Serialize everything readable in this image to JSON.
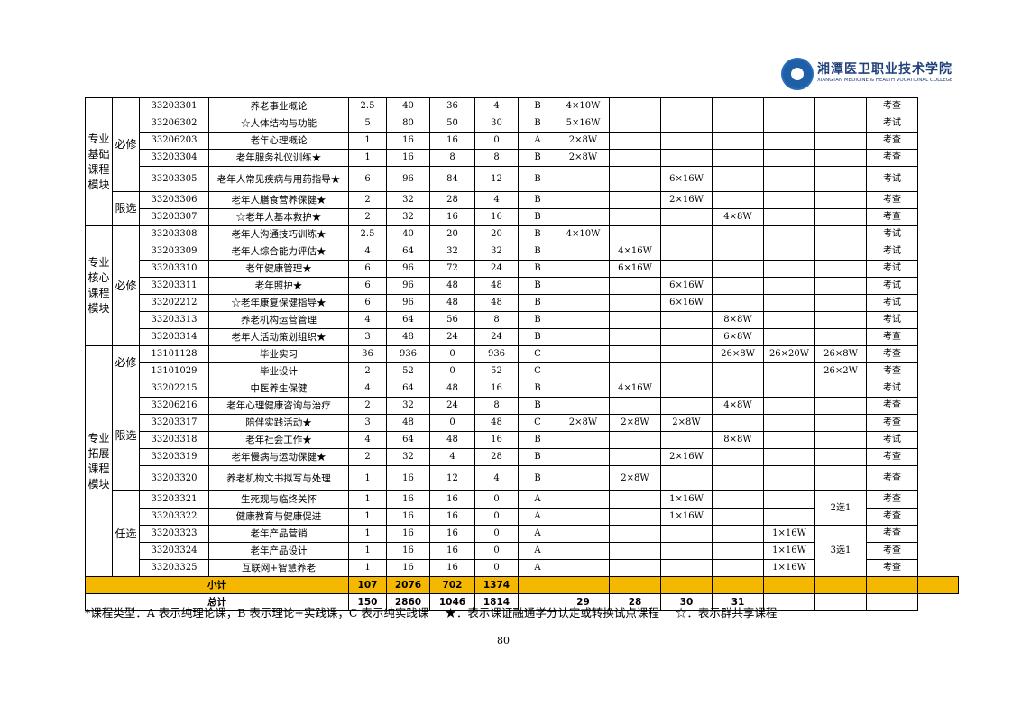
{
  "logo": {
    "cn": "湘潭医卫职业技术学院",
    "en": "XIANGTAN MEDICINE & HEALTH VOCATIONAL COLLEGE"
  },
  "groups": {
    "g1": "专业基础课程模块",
    "g2": "专业核心课程模块",
    "g3": "专业拓展课程模块"
  },
  "types": {
    "bixiu": "必修",
    "xianxuan": "限选",
    "renxuan": "任选"
  },
  "rows": [
    {
      "code": "33203301",
      "name": "养老事业概论",
      "credit": "2.5",
      "total": "40",
      "theory": "36",
      "practice": "4",
      "type": "B",
      "s1": "4×10W",
      "s2": "",
      "s3": "",
      "s4": "",
      "s5": "",
      "s6": "",
      "exam": "考查"
    },
    {
      "code": "33206302",
      "name": "☆人体结构与功能",
      "credit": "5",
      "total": "80",
      "theory": "50",
      "practice": "30",
      "type": "B",
      "s1": "5×16W",
      "s2": "",
      "s3": "",
      "s4": "",
      "s5": "",
      "s6": "",
      "exam": "考试"
    },
    {
      "code": "33206203",
      "name": "老年心理概论",
      "credit": "1",
      "total": "16",
      "theory": "16",
      "practice": "0",
      "type": "A",
      "s1": "2×8W",
      "s2": "",
      "s3": "",
      "s4": "",
      "s5": "",
      "s6": "",
      "exam": "考查"
    },
    {
      "code": "33203304",
      "name": "老年服务礼仪训练★",
      "credit": "1",
      "total": "16",
      "theory": "8",
      "practice": "8",
      "type": "B",
      "s1": "2×8W",
      "s2": "",
      "s3": "",
      "s4": "",
      "s5": "",
      "s6": "",
      "exam": "考查"
    },
    {
      "code": "33203305",
      "name": "老年人常见疾病与用药指导★",
      "credit": "6",
      "total": "96",
      "theory": "84",
      "practice": "12",
      "type": "B",
      "s1": "",
      "s2": "",
      "s3": "6×16W",
      "s4": "",
      "s5": "",
      "s6": "",
      "exam": "考试"
    },
    {
      "code": "33203306",
      "name": "老年人膳食营养保健★",
      "credit": "2",
      "total": "32",
      "theory": "28",
      "practice": "4",
      "type": "B",
      "s1": "",
      "s2": "",
      "s3": "2×16W",
      "s4": "",
      "s5": "",
      "s6": "",
      "exam": "考查"
    },
    {
      "code": "33203307",
      "name": "☆老年人基本救护★",
      "credit": "2",
      "total": "32",
      "theory": "16",
      "practice": "16",
      "type": "B",
      "s1": "",
      "s2": "",
      "s3": "",
      "s4": "4×8W",
      "s5": "",
      "s6": "",
      "exam": "考查"
    },
    {
      "code": "33203308",
      "name": "老年人沟通技巧训练★",
      "credit": "2.5",
      "total": "40",
      "theory": "20",
      "practice": "20",
      "type": "B",
      "s1": "4×10W",
      "s2": "",
      "s3": "",
      "s4": "",
      "s5": "",
      "s6": "",
      "exam": "考试"
    },
    {
      "code": "33203309",
      "name": "老年人综合能力评估★",
      "credit": "4",
      "total": "64",
      "theory": "32",
      "practice": "32",
      "type": "B",
      "s1": "",
      "s2": "4×16W",
      "s3": "",
      "s4": "",
      "s5": "",
      "s6": "",
      "exam": "考试"
    },
    {
      "code": "33203310",
      "name": "老年健康管理★",
      "credit": "6",
      "total": "96",
      "theory": "72",
      "practice": "24",
      "type": "B",
      "s1": "",
      "s2": "6×16W",
      "s3": "",
      "s4": "",
      "s5": "",
      "s6": "",
      "exam": "考试"
    },
    {
      "code": "33203311",
      "name": "老年照护★",
      "credit": "6",
      "total": "96",
      "theory": "48",
      "practice": "48",
      "type": "B",
      "s1": "",
      "s2": "",
      "s3": "6×16W",
      "s4": "",
      "s5": "",
      "s6": "",
      "exam": "考试"
    },
    {
      "code": "33202212",
      "name": "☆老年康复保健指导★",
      "credit": "6",
      "total": "96",
      "theory": "48",
      "practice": "48",
      "type": "B",
      "s1": "",
      "s2": "",
      "s3": "6×16W",
      "s4": "",
      "s5": "",
      "s6": "",
      "exam": "考试"
    },
    {
      "code": "33203313",
      "name": "养老机构运营管理",
      "credit": "4",
      "total": "64",
      "theory": "56",
      "practice": "8",
      "type": "B",
      "s1": "",
      "s2": "",
      "s3": "",
      "s4": "8×8W",
      "s5": "",
      "s6": "",
      "exam": "考试"
    },
    {
      "code": "33203314",
      "name": "老年人活动策划组织★",
      "credit": "3",
      "total": "48",
      "theory": "24",
      "practice": "24",
      "type": "B",
      "s1": "",
      "s2": "",
      "s3": "",
      "s4": "6×8W",
      "s5": "",
      "s6": "",
      "exam": "考查"
    },
    {
      "code": "13101128",
      "name": "毕业实习",
      "credit": "36",
      "total": "936",
      "theory": "0",
      "practice": "936",
      "type": "C",
      "s1": "",
      "s2": "",
      "s3": "",
      "s4": "26×8W",
      "s5": "26×20W",
      "s6": "26×8W",
      "exam": "考查"
    },
    {
      "code": "13101029",
      "name": "毕业设计",
      "credit": "2",
      "total": "52",
      "theory": "0",
      "practice": "52",
      "type": "C",
      "s1": "",
      "s2": "",
      "s3": "",
      "s4": "",
      "s5": "",
      "s6": "26×2W",
      "exam": "考查"
    },
    {
      "code": "33202215",
      "name": "中医养生保健",
      "credit": "4",
      "total": "64",
      "theory": "48",
      "practice": "16",
      "type": "B",
      "s1": "",
      "s2": "4×16W",
      "s3": "",
      "s4": "",
      "s5": "",
      "s6": "",
      "exam": "考试"
    },
    {
      "code": "33206216",
      "name": "老年心理健康咨询与治疗",
      "credit": "2",
      "total": "32",
      "theory": "24",
      "practice": "8",
      "type": "B",
      "s1": "",
      "s2": "",
      "s3": "",
      "s4": "4×8W",
      "s5": "",
      "s6": "",
      "exam": "考查"
    },
    {
      "code": "33203317",
      "name": "陪伴实践活动★",
      "credit": "3",
      "total": "48",
      "theory": "0",
      "practice": "48",
      "type": "C",
      "s1": "2×8W",
      "s2": "2×8W",
      "s3": "2×8W",
      "s4": "",
      "s5": "",
      "s6": "",
      "exam": "考查"
    },
    {
      "code": "33203318",
      "name": "老年社会工作★",
      "credit": "4",
      "total": "64",
      "theory": "48",
      "practice": "16",
      "type": "B",
      "s1": "",
      "s2": "",
      "s3": "",
      "s4": "8×8W",
      "s5": "",
      "s6": "",
      "exam": "考试"
    },
    {
      "code": "33203319",
      "name": "老年慢病与运动保健★",
      "credit": "2",
      "total": "32",
      "theory": "4",
      "practice": "28",
      "type": "B",
      "s1": "",
      "s2": "",
      "s3": "2×16W",
      "s4": "",
      "s5": "",
      "s6": "",
      "exam": "考查"
    },
    {
      "code": "33203320",
      "name": "养老机构文书拟写与处理",
      "credit": "1",
      "total": "16",
      "theory": "12",
      "practice": "4",
      "type": "B",
      "s1": "",
      "s2": "2×8W",
      "s3": "",
      "s4": "",
      "s5": "",
      "s6": "",
      "exam": "考查"
    },
    {
      "code": "33203321",
      "name": "生死观与临终关怀",
      "credit": "1",
      "total": "16",
      "theory": "16",
      "practice": "0",
      "type": "A",
      "s1": "",
      "s2": "",
      "s3": "1×16W",
      "s4": "",
      "s5": "",
      "s6": "",
      "exam": "考查"
    },
    {
      "code": "33203322",
      "name": "健康教育与健康促进",
      "credit": "1",
      "total": "16",
      "theory": "16",
      "practice": "0",
      "type": "A",
      "s1": "",
      "s2": "",
      "s3": "1×16W",
      "s4": "",
      "s5": "",
      "s6": "",
      "exam": "考查"
    },
    {
      "code": "33203323",
      "name": "老年产品营销",
      "credit": "1",
      "total": "16",
      "theory": "16",
      "practice": "0",
      "type": "A",
      "s1": "",
      "s2": "",
      "s3": "",
      "s4": "",
      "s5": "1×16W",
      "s6": "",
      "exam": "考查"
    },
    {
      "code": "33203324",
      "name": "老年产品设计",
      "credit": "1",
      "total": "16",
      "theory": "16",
      "practice": "0",
      "type": "A",
      "s1": "",
      "s2": "",
      "s3": "",
      "s4": "",
      "s5": "1×16W",
      "s6": "",
      "exam": "考查"
    },
    {
      "code": "33203325",
      "name": "互联网+智慧养老",
      "credit": "1",
      "total": "16",
      "theory": "16",
      "practice": "0",
      "type": "A",
      "s1": "",
      "s2": "",
      "s3": "",
      "s4": "",
      "s5": "1×16W",
      "s6": "",
      "exam": "考查"
    }
  ],
  "elective_notes": {
    "two_of_one": "2选1",
    "three_of_one": "3选1"
  },
  "subtotal": {
    "label": "小计",
    "credit": "107",
    "total": "2076",
    "theory": "702",
    "practice": "1374"
  },
  "grand_total": {
    "label": "总计",
    "credit": "150",
    "total": "2860",
    "theory": "1046",
    "practice": "1814",
    "s1": "29",
    "s2": "28",
    "s3": "30",
    "s4": "31"
  },
  "footnote": {
    "types": "*课程类型：A 表示纯理论课；B 表示理论+实践课；C 表示纯实践课",
    "star": "★：表示课证融通学分认定或转换试点课程",
    "hollow": "☆：表示群共享课程"
  },
  "page_number": "80",
  "colors": {
    "subtotal_bg": "#f5b800",
    "logo_blue": "#1f5fa8"
  }
}
